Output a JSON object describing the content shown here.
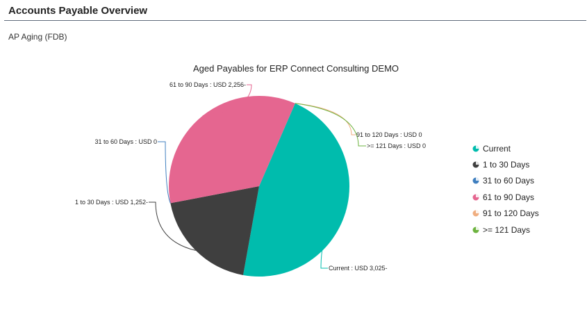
{
  "page": {
    "title": "Accounts Payable Overview",
    "section": "AP Aging (FDB)"
  },
  "chart_data": {
    "type": "pie",
    "title": "Aged Payables for ERP Connect Consulting DEMO",
    "legend_position": "right",
    "slices": [
      {
        "name": "Current",
        "value": 3025,
        "label": "Current : USD 3,025-",
        "color": "#00bcad"
      },
      {
        "name": "1 to 30 Days",
        "value": 1252,
        "label": "1 to 30 Days : USD 1,252-",
        "color": "#3f3f3f"
      },
      {
        "name": "31 to 60 Days",
        "value": 0,
        "label": "31 to 60 Days : USD 0",
        "color": "#3f7fbf"
      },
      {
        "name": "61 to 90 Days",
        "value": 2256,
        "label": "61 to 90 Days : USD 2,256-",
        "color": "#e56690"
      },
      {
        "name": "91 to 120 Days",
        "value": 0,
        "label": "91 to 120 Days : USD 0",
        "color": "#f0ae80"
      },
      {
        "name": ">= 121 Days",
        "value": 0,
        "label": ">= 121 Days : USD 0",
        "color": "#6db33f"
      }
    ]
  }
}
